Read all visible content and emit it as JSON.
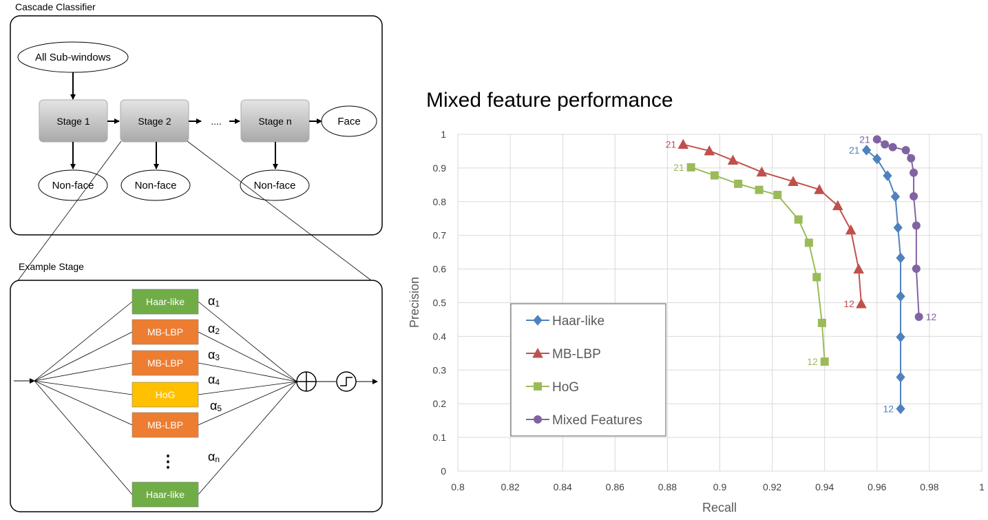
{
  "cascade": {
    "section_title": "Cascade Classifier",
    "input_label": "All Sub-windows",
    "stages": [
      "Stage 1",
      "Stage 2",
      "Stage n"
    ],
    "ellipsis": "....",
    "face_label": "Face",
    "nonface_label": "Non-face"
  },
  "example_stage": {
    "section_title": "Example Stage",
    "features": [
      {
        "label": "Haar-like",
        "color": "#70ad47"
      },
      {
        "label": "MB-LBP",
        "color": "#ed7d31"
      },
      {
        "label": "MB-LBP",
        "color": "#ed7d31"
      },
      {
        "label": "HoG",
        "color": "#ffc000"
      },
      {
        "label": "MB-LBP",
        "color": "#ed7d31"
      },
      {
        "label": "Haar-like",
        "color": "#70ad47"
      }
    ],
    "vertical_ellipsis": "⋮",
    "weights": [
      {
        "symbol": "α",
        "sub": "1"
      },
      {
        "symbol": "α",
        "sub": "2"
      },
      {
        "symbol": "α",
        "sub": "3"
      },
      {
        "symbol": "α",
        "sub": "4"
      },
      {
        "symbol": "α",
        "sub": "5"
      },
      {
        "symbol": "α",
        "sub": "n"
      }
    ]
  },
  "chart_data": {
    "type": "line",
    "title": "Mixed feature performance",
    "xlabel": "Recall",
    "ylabel": "Precision",
    "xlim": [
      0.8,
      1
    ],
    "ylim": [
      0,
      1
    ],
    "xticks": [
      "0.8",
      "0.82",
      "0.84",
      "0.86",
      "0.88",
      "0.9",
      "0.92",
      "0.94",
      "0.96",
      "0.98",
      "1"
    ],
    "yticks": [
      "0",
      "0.1",
      "0.2",
      "0.3",
      "0.4",
      "0.5",
      "0.6",
      "0.7",
      "0.8",
      "0.9",
      "1"
    ],
    "grid": true,
    "legend_position": "lower-left",
    "series": [
      {
        "name": "Haar-like",
        "color": "#4f81bd",
        "marker": "diamond",
        "x": [
          0.956,
          0.96,
          0.964,
          0.967,
          0.968,
          0.969,
          0.969,
          0.969,
          0.969,
          0.969
        ],
        "y": [
          0.953,
          0.927,
          0.877,
          0.815,
          0.723,
          0.633,
          0.519,
          0.398,
          0.279,
          0.185
        ],
        "start_label": "21",
        "end_label": "12"
      },
      {
        "name": "MB-LBP",
        "color": "#c0504d",
        "marker": "triangle",
        "x": [
          0.886,
          0.896,
          0.905,
          0.916,
          0.928,
          0.938,
          0.945,
          0.95,
          0.953,
          0.954
        ],
        "y": [
          0.97,
          0.951,
          0.923,
          0.888,
          0.86,
          0.836,
          0.788,
          0.716,
          0.6,
          0.497
        ],
        "start_label": "21",
        "end_label": "12"
      },
      {
        "name": "HoG",
        "color": "#9bbb59",
        "marker": "square",
        "x": [
          0.889,
          0.898,
          0.907,
          0.915,
          0.922,
          0.93,
          0.934,
          0.937,
          0.939,
          0.94
        ],
        "y": [
          0.902,
          0.878,
          0.853,
          0.835,
          0.82,
          0.747,
          0.678,
          0.576,
          0.44,
          0.325
        ],
        "start_label": "21",
        "end_label": "12"
      },
      {
        "name": "Mixed Features",
        "color": "#8064a2",
        "marker": "circle",
        "x": [
          0.96,
          0.963,
          0.966,
          0.971,
          0.973,
          0.974,
          0.974,
          0.975,
          0.975,
          0.976
        ],
        "y": [
          0.985,
          0.97,
          0.962,
          0.953,
          0.929,
          0.886,
          0.816,
          0.729,
          0.601,
          0.458
        ],
        "start_label": "21",
        "end_label": "12"
      }
    ]
  }
}
